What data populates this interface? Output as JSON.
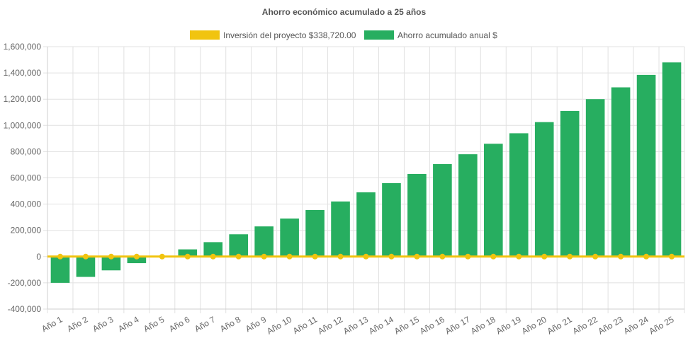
{
  "chart_data": {
    "type": "bar",
    "title": "Ahorro económico acumulado a 25 años",
    "legend_position": "top",
    "grid": true,
    "ylim": [
      -400000,
      1600000
    ],
    "y_ticks": [
      "1,600,000",
      "1,400,000",
      "1,200,000",
      "1,000,000",
      "800,000",
      "600,000",
      "400,000",
      "200,000",
      "0",
      "-200,000",
      "-400,000"
    ],
    "y_tick_values": [
      1600000,
      1400000,
      1200000,
      1000000,
      800000,
      600000,
      400000,
      200000,
      0,
      -200000,
      -400000
    ],
    "categories": [
      "Año 1",
      "Año 2",
      "Año 3",
      "Año 4",
      "Año 5",
      "Año 6",
      "Año 7",
      "Año 8",
      "Año 9",
      "Año 10",
      "Año 11",
      "Año 12",
      "Año 13",
      "Año 14",
      "Año 15",
      "Año 16",
      "Año 17",
      "Año 18",
      "Año 19",
      "Año 20",
      "Año 21",
      "Año 22",
      "Año 23",
      "Año 24",
      "Año 25"
    ],
    "series": [
      {
        "name": "Inversión del proyecto $338,720.00",
        "type": "line",
        "color": "#f1c40f",
        "values": [
          0,
          0,
          0,
          0,
          0,
          0,
          0,
          0,
          0,
          0,
          0,
          0,
          0,
          0,
          0,
          0,
          0,
          0,
          0,
          0,
          0,
          0,
          0,
          0,
          0
        ]
      },
      {
        "name": "Ahorro acumulado anual $",
        "type": "bar",
        "color": "#27ae60",
        "values": [
          -200000,
          -155000,
          -105000,
          -50000,
          5000,
          55000,
          110000,
          170000,
          230000,
          290000,
          355000,
          420000,
          490000,
          560000,
          630000,
          705000,
          780000,
          860000,
          940000,
          1025000,
          1110000,
          1200000,
          1290000,
          1385000,
          1480000
        ]
      }
    ]
  }
}
